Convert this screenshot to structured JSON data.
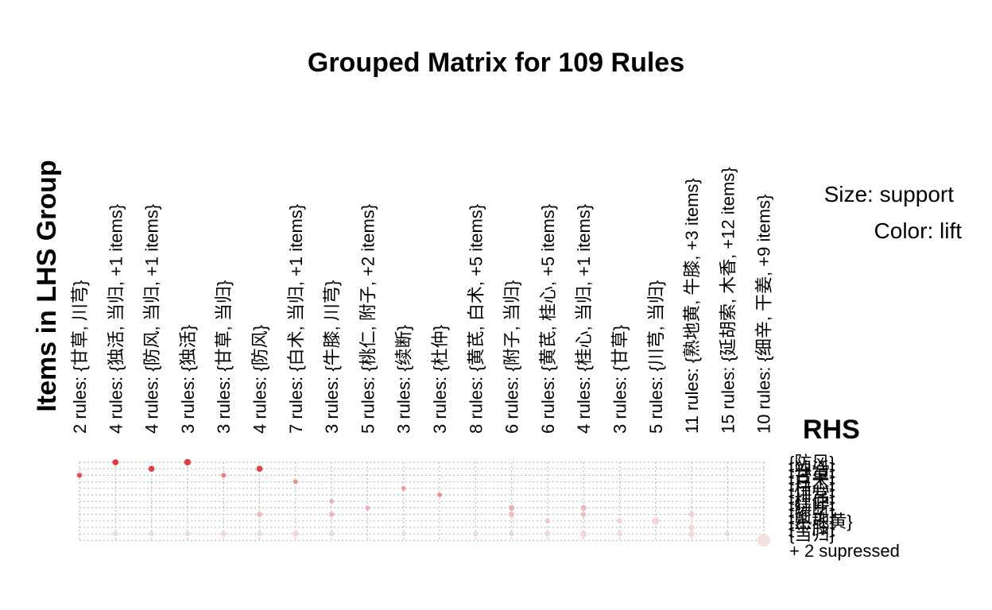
{
  "chart_data": {
    "type": "scatter",
    "title": "Grouped Matrix for 109 Rules",
    "lhs_axis_title": "Items in LHS Group",
    "rhs_axis_title": "RHS",
    "legend": {
      "size": "Size: support",
      "color": "Color: lift"
    },
    "lhs_groups": [
      "2 rules: {甘草, 川芎}",
      "4 rules: {独活, 当归, +1 items}",
      "4 rules: {防风, 当归, +1 items}",
      "3 rules: {独活}",
      "3 rules: {甘草, 当归}",
      "4 rules: {防风}",
      "7 rules: {白术, 当归, +1 items}",
      "3 rules: {牛膝, 川芎}",
      "5 rules: {桃仁, 附子, +2 items}",
      "3 rules: {续断}",
      "3 rules: {杜仲}",
      "8 rules: {黄芪, 白术, +5 items}",
      "6 rules: {附子, 当归}",
      "6 rules: {黄芪, 桂心, +5 items}",
      "4 rules: {桂心, 当归, +1 items}",
      "3 rules: {甘草}",
      "5 rules: {川芎, 当归}",
      "11 rules: {熟地黄, 牛膝, +3 items}",
      "15 rules: {延胡索, 木香, +12 items}",
      "10 rules: {细辛, 干姜, +9 items}"
    ],
    "rhs_items": [
      "{防风}",
      "{独活}",
      "{甘草}",
      "{白术}",
      "{桂心}",
      "{川芎}",
      "{杜仲}",
      "{续断}",
      "{附子}",
      "{熟地黄}",
      "{牛膝}",
      "{当归}"
    ],
    "rhs_suppressed": "+ 2 supressed",
    "lift_color_scale": {
      "low": "#f3e1e1",
      "high": "#e3343a"
    },
    "points": [
      {
        "group": 1,
        "rhs": 0,
        "support": 0.3,
        "lift": 1.0
      },
      {
        "group": 3,
        "rhs": 0,
        "support": 0.35,
        "lift": 0.95
      },
      {
        "group": 0,
        "rhs": 2,
        "support": 0.2,
        "lift": 0.85
      },
      {
        "group": 2,
        "rhs": 1,
        "support": 0.3,
        "lift": 0.95
      },
      {
        "group": 5,
        "rhs": 1,
        "support": 0.3,
        "lift": 0.95
      },
      {
        "group": 4,
        "rhs": 2,
        "support": 0.15,
        "lift": 0.6
      },
      {
        "group": 6,
        "rhs": 3,
        "support": 0.15,
        "lift": 0.5
      },
      {
        "group": 9,
        "rhs": 4,
        "support": 0.15,
        "lift": 0.4
      },
      {
        "group": 10,
        "rhs": 5,
        "support": 0.15,
        "lift": 0.5
      },
      {
        "group": 7,
        "rhs": 6,
        "support": 0.15,
        "lift": 0.3
      },
      {
        "group": 8,
        "rhs": 7,
        "support": 0.15,
        "lift": 0.3
      },
      {
        "group": 12,
        "rhs": 7,
        "support": 0.25,
        "lift": 0.3
      },
      {
        "group": 14,
        "rhs": 7,
        "support": 0.25,
        "lift": 0.25
      },
      {
        "group": 5,
        "rhs": 8,
        "support": 0.2,
        "lift": 0.25
      },
      {
        "group": 7,
        "rhs": 8,
        "support": 0.2,
        "lift": 0.25
      },
      {
        "group": 12,
        "rhs": 8,
        "support": 0.25,
        "lift": 0.2
      },
      {
        "group": 14,
        "rhs": 8,
        "support": 0.2,
        "lift": 0.2
      },
      {
        "group": 17,
        "rhs": 8,
        "support": 0.25,
        "lift": 0.1
      },
      {
        "group": 13,
        "rhs": 9,
        "support": 0.2,
        "lift": 0.15
      },
      {
        "group": 15,
        "rhs": 9,
        "support": 0.2,
        "lift": 0.1
      },
      {
        "group": 16,
        "rhs": 9,
        "support": 0.45,
        "lift": 0.05
      },
      {
        "group": 17,
        "rhs": 10,
        "support": 0.3,
        "lift": 0.05
      },
      {
        "group": 1,
        "rhs": 11,
        "support": 0.15,
        "lift": 0.05
      },
      {
        "group": 2,
        "rhs": 11,
        "support": 0.2,
        "lift": 0.05
      },
      {
        "group": 3,
        "rhs": 11,
        "support": 0.2,
        "lift": 0.05
      },
      {
        "group": 4,
        "rhs": 11,
        "support": 0.25,
        "lift": 0.05
      },
      {
        "group": 5,
        "rhs": 11,
        "support": 0.2,
        "lift": 0.05
      },
      {
        "group": 6,
        "rhs": 11,
        "support": 0.3,
        "lift": 0.05
      },
      {
        "group": 7,
        "rhs": 11,
        "support": 0.2,
        "lift": 0.05
      },
      {
        "group": 9,
        "rhs": 11,
        "support": 0.15,
        "lift": 0.05
      },
      {
        "group": 11,
        "rhs": 11,
        "support": 0.2,
        "lift": 0.05
      },
      {
        "group": 12,
        "rhs": 11,
        "support": 0.2,
        "lift": 0.05
      },
      {
        "group": 13,
        "rhs": 11,
        "support": 0.25,
        "lift": 0.05
      },
      {
        "group": 14,
        "rhs": 11,
        "support": 0.35,
        "lift": 0.05
      },
      {
        "group": 15,
        "rhs": 11,
        "support": 0.2,
        "lift": 0.05
      },
      {
        "group": 17,
        "rhs": 11,
        "support": 0.3,
        "lift": 0.05
      },
      {
        "group": 18,
        "rhs": 11,
        "support": 0.2,
        "lift": 0.05
      },
      {
        "group": 19,
        "rhs": 12,
        "support": 1.0,
        "lift": 0.0
      }
    ]
  }
}
